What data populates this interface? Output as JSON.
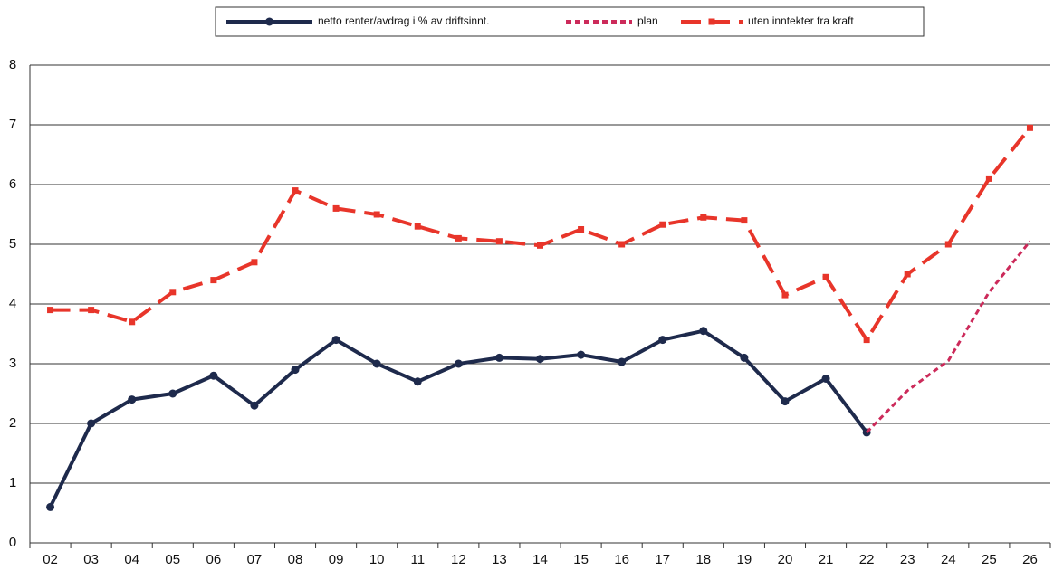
{
  "chart_data": {
    "type": "line",
    "categories": [
      "02",
      "03",
      "04",
      "05",
      "06",
      "07",
      "08",
      "09",
      "10",
      "11",
      "12",
      "13",
      "14",
      "15",
      "16",
      "17",
      "18",
      "19",
      "20",
      "21",
      "22",
      "23",
      "24",
      "25",
      "26"
    ],
    "series": [
      {
        "name": "netto renter/avdrag i % av driftsinnt.",
        "color": "#1e2a4c",
        "style": "solid",
        "marker": "circle",
        "values": [
          0.6,
          2.0,
          2.4,
          2.5,
          2.8,
          2.3,
          2.9,
          3.4,
          3.0,
          2.7,
          3.0,
          3.1,
          3.08,
          3.15,
          3.03,
          3.4,
          3.55,
          3.1,
          2.37,
          2.75,
          1.85,
          null,
          null,
          null,
          null
        ]
      },
      {
        "name": "plan",
        "color": "#cc2a5a",
        "style": "dashed",
        "marker": "none",
        "values": [
          null,
          null,
          null,
          null,
          null,
          null,
          null,
          null,
          null,
          null,
          null,
          null,
          null,
          null,
          null,
          null,
          null,
          null,
          null,
          null,
          1.85,
          2.55,
          3.05,
          4.2,
          5.05
        ]
      },
      {
        "name": "uten inntekter fra kraft",
        "color": "#e8352a",
        "style": "longdash",
        "marker": "square",
        "values": [
          3.9,
          3.9,
          3.7,
          4.2,
          4.4,
          4.7,
          5.9,
          5.6,
          5.5,
          5.3,
          5.1,
          5.05,
          4.98,
          5.25,
          5.0,
          5.33,
          5.45,
          5.4,
          4.15,
          4.45,
          3.4,
          4.5,
          5.0,
          6.1,
          6.95
        ]
      }
    ],
    "ylim": [
      0,
      8
    ],
    "yticks": [
      0,
      1,
      2,
      3,
      4,
      5,
      6,
      7,
      8
    ],
    "grid": true,
    "legend": "top"
  }
}
